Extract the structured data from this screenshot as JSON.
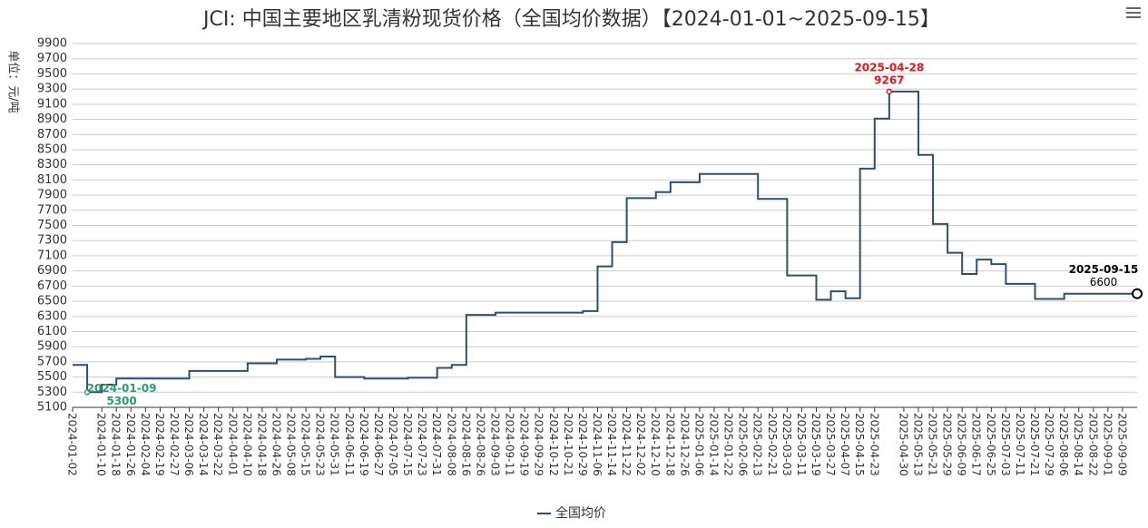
{
  "chart_data": {
    "type": "line",
    "title": "JCI: 中国主要地区乳清粉现货价格（全国均价数据）【2024-01-01~2025-09-15】",
    "y_label": "单位：元/吨",
    "categories": [
      "2024-01-02",
      null,
      "2024-01-10",
      "2024-01-18",
      "2024-01-26",
      "2024-02-04",
      "2024-02-19",
      "2024-02-27",
      "2024-03-06",
      "2024-03-14",
      "2024-03-22",
      "2024-04-01",
      "2024-04-10",
      "2024-04-18",
      "2024-04-26",
      "2024-05-08",
      "2024-05-15",
      "2024-05-23",
      "2024-05-31",
      "2024-06-11",
      "2024-06-19",
      "2024-06-27",
      "2024-07-05",
      "2024-07-15",
      "2024-07-23",
      "2024-07-31",
      "2024-08-08",
      "2024-08-16",
      "2024-08-26",
      "2024-09-03",
      "2024-09-11",
      "2024-09-19",
      "2024-09-29",
      "2024-10-12",
      "2024-10-21",
      "2024-10-29",
      "2024-11-06",
      "2024-11-14",
      "2024-11-22",
      "2024-12-02",
      "2024-12-10",
      "2024-12-18",
      "2024-12-26",
      "2025-01-06",
      "2025-01-14",
      "2025-01-22",
      "2025-02-06",
      "2025-02-13",
      "2025-02-21",
      "2025-03-03",
      "2025-03-11",
      "2025-03-19",
      "2025-03-27",
      "2025-04-07",
      "2025-04-15",
      "2025-04-23",
      null,
      "2025-04-30",
      "2025-05-13",
      "2025-05-21",
      "2025-05-29",
      "2025-06-09",
      "2025-06-17",
      "2025-06-25",
      "2025-07-03",
      "2025-07-11",
      "2025-07-21",
      "2025-07-29",
      "2025-08-06",
      "2025-08-14",
      "2025-08-22",
      "2025-09-01",
      "2025-09-09",
      null
    ],
    "series": [
      {
        "name": "全国均价",
        "color": "#2f4e72",
        "values": [
          5660,
          5300,
          5400,
          5480,
          5480,
          5480,
          5480,
          5480,
          5580,
          5580,
          5580,
          5580,
          5680,
          5680,
          5730,
          5730,
          5740,
          5770,
          5500,
          5500,
          5480,
          5480,
          5480,
          5490,
          5490,
          5620,
          5660,
          6320,
          6320,
          6350,
          6350,
          6350,
          6350,
          6350,
          6350,
          6370,
          6960,
          7280,
          7860,
          7860,
          7940,
          8070,
          8070,
          8180,
          8180,
          8180,
          8180,
          7850,
          7850,
          6840,
          6840,
          6520,
          6630,
          6540,
          8250,
          8910,
          9267,
          9267,
          8430,
          7520,
          7140,
          6860,
          7050,
          6990,
          6730,
          6730,
          6530,
          6530,
          6600,
          6600,
          6600,
          6600,
          6600,
          6600
        ]
      }
    ],
    "annotations": [
      {
        "date": "2024-01-09",
        "value": 5300,
        "color": "#2e9c6a"
      },
      {
        "date": "2025-04-28",
        "value": 9267,
        "color": "#e8151b"
      },
      {
        "date": "2025-09-15",
        "value": 6600,
        "color": "#000000"
      }
    ],
    "ylim": [
      5100,
      9900
    ],
    "yticks": [
      5100,
      5300,
      5500,
      5700,
      5900,
      6100,
      6300,
      6500,
      6700,
      6900,
      7100,
      7300,
      7500,
      7700,
      7900,
      8100,
      8300,
      8500,
      8700,
      8900,
      9100,
      9300,
      9500,
      9700,
      9900
    ],
    "grid": true,
    "step": true,
    "legend": "bottom"
  }
}
